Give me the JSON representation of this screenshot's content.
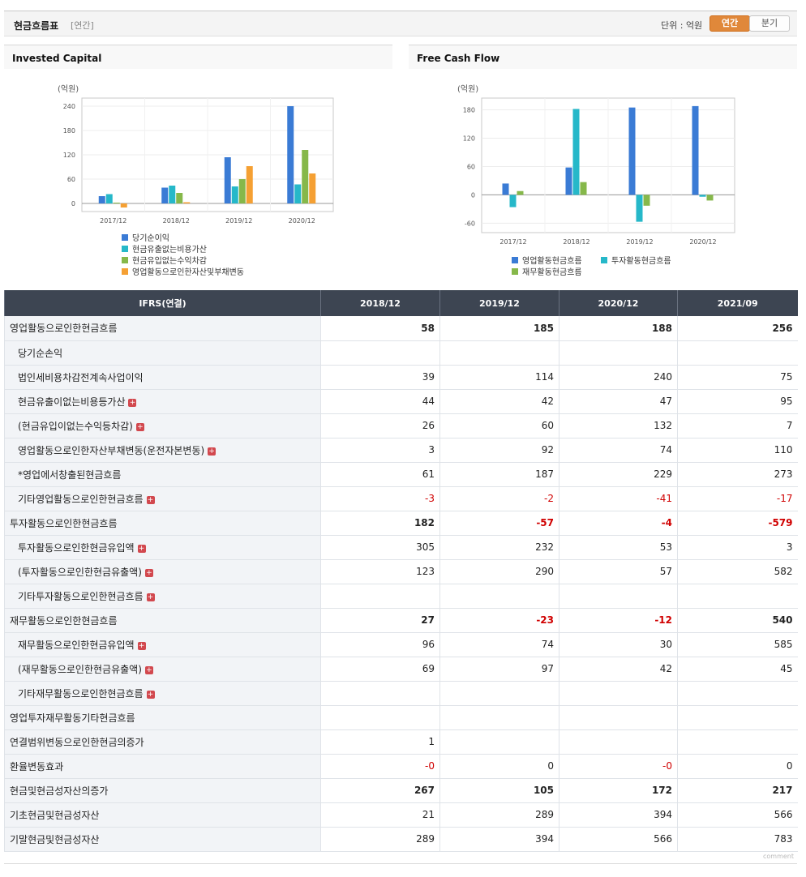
{
  "header": {
    "title": "현금흐름표",
    "subtitle": "[연간]",
    "unit_label": "단위 : 억원",
    "tab_annual": "연간",
    "tab_quarter": "분기"
  },
  "chart_data": [
    {
      "type": "bar",
      "title": "Invested Capital",
      "ylabel": "(억원)",
      "ylim": [
        -20,
        260
      ],
      "yticks": [
        "240",
        "180",
        "120",
        "60",
        "0"
      ],
      "categories": [
        "2017/12",
        "2018/12",
        "2019/12",
        "2020/12"
      ],
      "legend_position": "bottom",
      "series": [
        {
          "name": "당기순이익",
          "color": "#3a7bd5",
          "values": [
            18,
            39,
            114,
            240
          ]
        },
        {
          "name": "현금유출없는비용가산",
          "color": "#26b8c9",
          "values": [
            23,
            44,
            42,
            47
          ]
        },
        {
          "name": "현금유입없는수익차감",
          "color": "#86b84a",
          "values": [
            2,
            26,
            60,
            132
          ]
        },
        {
          "name": "영업활동으로인한자산및부채변동",
          "color": "#f5a033",
          "values": [
            -10,
            3,
            92,
            74
          ]
        }
      ]
    },
    {
      "type": "bar",
      "title": "Free Cash Flow",
      "ylabel": "(억원)",
      "ylim": [
        -80,
        205
      ],
      "yticks": [
        "180",
        "120",
        "60",
        "0",
        "-60"
      ],
      "categories": [
        "2017/12",
        "2018/12",
        "2019/12",
        "2020/12"
      ],
      "legend_position": "bottom",
      "series": [
        {
          "name": "영업활동현금흐름",
          "color": "#3a7bd5",
          "values": [
            24,
            58,
            185,
            188
          ]
        },
        {
          "name": "투자활동현금흐름",
          "color": "#26b8c9",
          "values": [
            -26,
            182,
            -57,
            -4
          ]
        },
        {
          "name": "재무활동현금흐름",
          "color": "#86b84a",
          "values": [
            8,
            27,
            -23,
            -12
          ]
        }
      ]
    }
  ],
  "table": {
    "header": [
      "IFRS(연결)",
      "2018/12",
      "2019/12",
      "2020/12",
      "2021/09"
    ],
    "rows": [
      {
        "label": "영업활동으로인한현금흐름",
        "level": 1,
        "bold": true,
        "expand": false,
        "values": [
          "58",
          "185",
          "188",
          "256"
        ]
      },
      {
        "label": "당기순손익",
        "level": 2,
        "bold": false,
        "expand": false,
        "values": [
          "",
          "",
          "",
          ""
        ]
      },
      {
        "label": "법인세비용차감전계속사업이익",
        "level": 2,
        "bold": false,
        "expand": false,
        "values": [
          "39",
          "114",
          "240",
          "75"
        ]
      },
      {
        "label": "현금유출이없는비용등가산",
        "level": 2,
        "bold": false,
        "expand": true,
        "values": [
          "44",
          "42",
          "47",
          "95"
        ]
      },
      {
        "label": "(현금유입이없는수익등차감)",
        "level": 2,
        "bold": false,
        "expand": true,
        "values": [
          "26",
          "60",
          "132",
          "7"
        ]
      },
      {
        "label": "영업활동으로인한자산부채변동(운전자본변동)",
        "level": 2,
        "bold": false,
        "expand": true,
        "values": [
          "3",
          "92",
          "74",
          "110"
        ]
      },
      {
        "label": "*영업에서창출된현금흐름",
        "level": 2,
        "bold": false,
        "expand": false,
        "values": [
          "61",
          "187",
          "229",
          "273"
        ]
      },
      {
        "label": "기타영업활동으로인한현금흐름",
        "level": 2,
        "bold": false,
        "expand": true,
        "values": [
          "-3",
          "-2",
          "-41",
          "-17"
        ]
      },
      {
        "label": "투자활동으로인한현금흐름",
        "level": 1,
        "bold": true,
        "expand": false,
        "values": [
          "182",
          "-57",
          "-4",
          "-579"
        ]
      },
      {
        "label": "투자활동으로인한현금유입액",
        "level": 2,
        "bold": false,
        "expand": true,
        "values": [
          "305",
          "232",
          "53",
          "3"
        ]
      },
      {
        "label": "(투자활동으로인한현금유출액)",
        "level": 2,
        "bold": false,
        "expand": true,
        "values": [
          "123",
          "290",
          "57",
          "582"
        ]
      },
      {
        "label": "기타투자활동으로인한현금흐름",
        "level": 2,
        "bold": false,
        "expand": true,
        "values": [
          "",
          "",
          "",
          ""
        ]
      },
      {
        "label": "재무활동으로인한현금흐름",
        "level": 1,
        "bold": true,
        "expand": false,
        "values": [
          "27",
          "-23",
          "-12",
          "540"
        ]
      },
      {
        "label": "재무활동으로인한현금유입액",
        "level": 2,
        "bold": false,
        "expand": true,
        "values": [
          "96",
          "74",
          "30",
          "585"
        ]
      },
      {
        "label": "(재무활동으로인한현금유출액)",
        "level": 2,
        "bold": false,
        "expand": true,
        "values": [
          "69",
          "97",
          "42",
          "45"
        ]
      },
      {
        "label": "기타재무활동으로인한현금흐름",
        "level": 2,
        "bold": false,
        "expand": true,
        "values": [
          "",
          "",
          "",
          ""
        ]
      },
      {
        "label": "영업투자재무활동기타현금흐름",
        "level": 1,
        "bold": false,
        "expand": false,
        "values": [
          "",
          "",
          "",
          ""
        ]
      },
      {
        "label": "연결범위변동으로인한현금의증가",
        "level": 1,
        "bold": false,
        "expand": false,
        "values": [
          "1",
          "",
          "",
          ""
        ]
      },
      {
        "label": "환율변동효과",
        "level": 1,
        "bold": false,
        "expand": false,
        "values": [
          "-0",
          "0",
          "-0",
          "0"
        ]
      },
      {
        "label": "현금및현금성자산의증가",
        "level": 1,
        "bold": true,
        "expand": false,
        "values": [
          "267",
          "105",
          "172",
          "217"
        ]
      },
      {
        "label": "기초현금및현금성자산",
        "level": 1,
        "bold": false,
        "expand": false,
        "values": [
          "21",
          "289",
          "394",
          "566"
        ]
      },
      {
        "label": "기말현금및현금성자산",
        "level": 1,
        "bold": false,
        "expand": false,
        "values": [
          "289",
          "394",
          "566",
          "783"
        ]
      }
    ]
  },
  "footer": {
    "comment": "comment"
  }
}
